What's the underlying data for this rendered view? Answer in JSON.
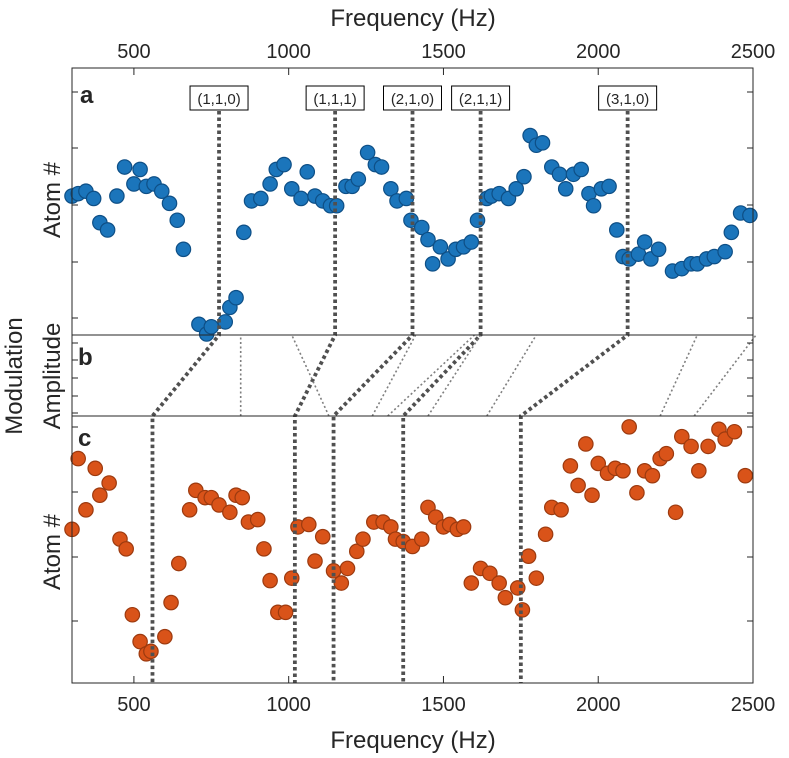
{
  "top_axis_label": "Frequency (Hz)",
  "bottom_axis_label": "Frequency (Hz)",
  "side_label_center": "Modulation",
  "colors": {
    "panel_a": "#1b75bb",
    "panel_c": "#d95319",
    "panel_a_edge": "#0e4f86",
    "panel_c_edge": "#9c3a0f",
    "mode_line": "#505050",
    "axis": "#262626"
  },
  "chart_data": [
    {
      "type": "scatter",
      "panel": "a",
      "panel_label": "a",
      "ylabel": "Atom #",
      "xlim": [
        300,
        2500
      ],
      "ylim": [
        0,
        1
      ],
      "xticks": [
        500,
        1000,
        1500,
        2000,
        2500
      ],
      "x_tick_position": "top",
      "grid": false,
      "points": [
        [
          300,
          0.57
        ],
        [
          320,
          0.58
        ],
        [
          345,
          0.59
        ],
        [
          370,
          0.56
        ],
        [
          390,
          0.46
        ],
        [
          415,
          0.43
        ],
        [
          445,
          0.57
        ],
        [
          470,
          0.69
        ],
        [
          500,
          0.62
        ],
        [
          520,
          0.68
        ],
        [
          540,
          0.61
        ],
        [
          565,
          0.62
        ],
        [
          590,
          0.59
        ],
        [
          615,
          0.54
        ],
        [
          640,
          0.47
        ],
        [
          660,
          0.35
        ],
        [
          710,
          0.04
        ],
        [
          735,
          0.0
        ],
        [
          750,
          0.03
        ],
        [
          795,
          0.05
        ],
        [
          810,
          0.11
        ],
        [
          830,
          0.15
        ],
        [
          855,
          0.42
        ],
        [
          880,
          0.55
        ],
        [
          910,
          0.56
        ],
        [
          940,
          0.62
        ],
        [
          960,
          0.68
        ],
        [
          985,
          0.7
        ],
        [
          1010,
          0.6
        ],
        [
          1040,
          0.56
        ],
        [
          1060,
          0.67
        ],
        [
          1085,
          0.57
        ],
        [
          1110,
          0.55
        ],
        [
          1135,
          0.53
        ],
        [
          1155,
          0.53
        ],
        [
          1185,
          0.61
        ],
        [
          1205,
          0.61
        ],
        [
          1225,
          0.64
        ],
        [
          1255,
          0.75
        ],
        [
          1280,
          0.7
        ],
        [
          1300,
          0.69
        ],
        [
          1330,
          0.6
        ],
        [
          1350,
          0.55
        ],
        [
          1380,
          0.56
        ],
        [
          1395,
          0.47
        ],
        [
          1430,
          0.44
        ],
        [
          1450,
          0.39
        ],
        [
          1465,
          0.29
        ],
        [
          1490,
          0.36
        ],
        [
          1515,
          0.31
        ],
        [
          1540,
          0.35
        ],
        [
          1565,
          0.36
        ],
        [
          1590,
          0.38
        ],
        [
          1610,
          0.47
        ],
        [
          1640,
          0.56
        ],
        [
          1655,
          0.57
        ],
        [
          1680,
          0.58
        ],
        [
          1710,
          0.56
        ],
        [
          1735,
          0.6
        ],
        [
          1760,
          0.65
        ],
        [
          1780,
          0.82
        ],
        [
          1800,
          0.78
        ],
        [
          1820,
          0.79
        ],
        [
          1850,
          0.69
        ],
        [
          1875,
          0.66
        ],
        [
          1895,
          0.6
        ],
        [
          1920,
          0.66
        ],
        [
          1945,
          0.68
        ],
        [
          1970,
          0.58
        ],
        [
          1985,
          0.53
        ],
        [
          2010,
          0.6
        ],
        [
          2035,
          0.61
        ],
        [
          2060,
          0.43
        ],
        [
          2080,
          0.32
        ],
        [
          2100,
          0.31
        ],
        [
          2130,
          0.33
        ],
        [
          2150,
          0.38
        ],
        [
          2170,
          0.31
        ],
        [
          2195,
          0.35
        ],
        [
          2240,
          0.26
        ],
        [
          2270,
          0.27
        ],
        [
          2300,
          0.29
        ],
        [
          2320,
          0.29
        ],
        [
          2350,
          0.31
        ],
        [
          2375,
          0.32
        ],
        [
          2410,
          0.34
        ],
        [
          2430,
          0.42
        ],
        [
          2460,
          0.5
        ],
        [
          2490,
          0.49
        ]
      ]
    },
    {
      "type": "line",
      "panel": "b",
      "panel_label": "b",
      "ylabel": "Amplitude",
      "xlim": [
        300,
        2500
      ],
      "mode_annotations": [
        "(1,1,0)",
        "(1,1,1)",
        "(2,1,0)",
        "(2,1,1)",
        "(3,1,0)"
      ],
      "mode_frequencies_top": [
        775,
        1150,
        1400,
        1620,
        2095
      ],
      "mode_frequencies_bottom": [
        560,
        1020,
        1145,
        1370,
        1750
      ],
      "dotted_reference_lines": [
        [
          845,
          845
        ],
        [
          1130,
          1010
        ],
        [
          1270,
          1410
        ],
        [
          1320,
          1600
        ],
        [
          1450,
          1620
        ],
        [
          1640,
          1800
        ],
        [
          2200,
          2320
        ],
        [
          2310,
          2510
        ]
      ]
    },
    {
      "type": "scatter",
      "panel": "c",
      "panel_label": "c",
      "ylabel": "Atom #",
      "xlim": [
        300,
        2500
      ],
      "ylim": [
        0,
        1
      ],
      "xticks": [
        500,
        1000,
        1500,
        2000,
        2500
      ],
      "x_tick_position": "bottom",
      "grid": false,
      "points": [
        [
          300,
          0.56
        ],
        [
          320,
          0.85
        ],
        [
          345,
          0.64
        ],
        [
          375,
          0.81
        ],
        [
          390,
          0.7
        ],
        [
          420,
          0.75
        ],
        [
          455,
          0.52
        ],
        [
          475,
          0.48
        ],
        [
          495,
          0.21
        ],
        [
          520,
          0.1
        ],
        [
          540,
          0.05
        ],
        [
          555,
          0.06
        ],
        [
          600,
          0.12
        ],
        [
          620,
          0.26
        ],
        [
          645,
          0.42
        ],
        [
          680,
          0.64
        ],
        [
          700,
          0.72
        ],
        [
          730,
          0.69
        ],
        [
          750,
          0.69
        ],
        [
          775,
          0.66
        ],
        [
          810,
          0.63
        ],
        [
          830,
          0.7
        ],
        [
          850,
          0.69
        ],
        [
          870,
          0.59
        ],
        [
          900,
          0.6
        ],
        [
          920,
          0.48
        ],
        [
          940,
          0.35
        ],
        [
          965,
          0.22
        ],
        [
          990,
          0.22
        ],
        [
          1010,
          0.36
        ],
        [
          1030,
          0.57
        ],
        [
          1065,
          0.58
        ],
        [
          1085,
          0.43
        ],
        [
          1110,
          0.53
        ],
        [
          1145,
          0.39
        ],
        [
          1170,
          0.34
        ],
        [
          1190,
          0.4
        ],
        [
          1220,
          0.47
        ],
        [
          1240,
          0.52
        ],
        [
          1275,
          0.59
        ],
        [
          1305,
          0.59
        ],
        [
          1330,
          0.57
        ],
        [
          1345,
          0.52
        ],
        [
          1370,
          0.51
        ],
        [
          1400,
          0.49
        ],
        [
          1430,
          0.52
        ],
        [
          1450,
          0.65
        ],
        [
          1475,
          0.61
        ],
        [
          1500,
          0.57
        ],
        [
          1520,
          0.58
        ],
        [
          1545,
          0.56
        ],
        [
          1565,
          0.57
        ],
        [
          1590,
          0.34
        ],
        [
          1620,
          0.4
        ],
        [
          1650,
          0.38
        ],
        [
          1680,
          0.34
        ],
        [
          1700,
          0.28
        ],
        [
          1740,
          0.32
        ],
        [
          1755,
          0.23
        ],
        [
          1775,
          0.45
        ],
        [
          1800,
          0.36
        ],
        [
          1830,
          0.54
        ],
        [
          1850,
          0.65
        ],
        [
          1880,
          0.64
        ],
        [
          1910,
          0.82
        ],
        [
          1935,
          0.74
        ],
        [
          1960,
          0.91
        ],
        [
          1980,
          0.7
        ],
        [
          2000,
          0.83
        ],
        [
          2030,
          0.79
        ],
        [
          2055,
          0.81
        ],
        [
          2080,
          0.8
        ],
        [
          2100,
          0.98
        ],
        [
          2125,
          0.71
        ],
        [
          2150,
          0.8
        ],
        [
          2175,
          0.78
        ],
        [
          2200,
          0.85
        ],
        [
          2220,
          0.87
        ],
        [
          2250,
          0.63
        ],
        [
          2270,
          0.94
        ],
        [
          2300,
          0.9
        ],
        [
          2325,
          0.8
        ],
        [
          2355,
          0.9
        ],
        [
          2390,
          0.97
        ],
        [
          2410,
          0.93
        ],
        [
          2440,
          0.96
        ],
        [
          2475,
          0.78
        ]
      ]
    }
  ]
}
